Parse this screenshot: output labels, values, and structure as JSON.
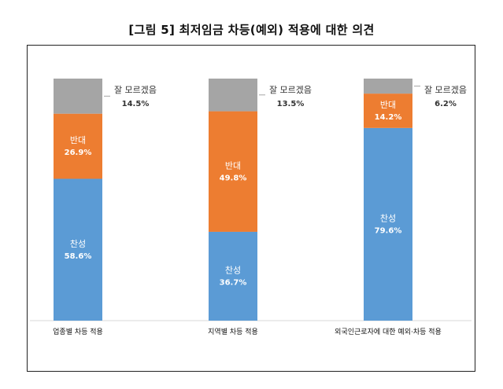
{
  "title": "[그림 5] 최저임금 차등(예외) 적용에 대한 의견",
  "chart_data": {
    "type": "bar",
    "stacked": true,
    "orientation": "vertical",
    "categories": [
      "업종별 차등 적용",
      "지역별 차등 적용",
      "외국인근로자에 대한 예외·차등 적용"
    ],
    "series": [
      {
        "name": "찬성",
        "values": [
          58.6,
          36.7,
          79.6
        ],
        "labels": [
          "58.6%",
          "36.7%",
          "79.6%"
        ],
        "color": "#5b9bd5"
      },
      {
        "name": "반대",
        "values": [
          26.9,
          49.8,
          14.2
        ],
        "labels": [
          "26.9%",
          "49.8%",
          "14.2%"
        ],
        "color": "#ed7d31"
      },
      {
        "name": "잘 모르겠음",
        "values": [
          14.5,
          13.5,
          6.2
        ],
        "labels": [
          "14.5%",
          "13.5%",
          "6.2%"
        ],
        "color": "#a5a5a5"
      }
    ],
    "ylim": [
      0,
      100
    ],
    "grid": false,
    "legend": "none",
    "top_segment_label_outside": true
  }
}
